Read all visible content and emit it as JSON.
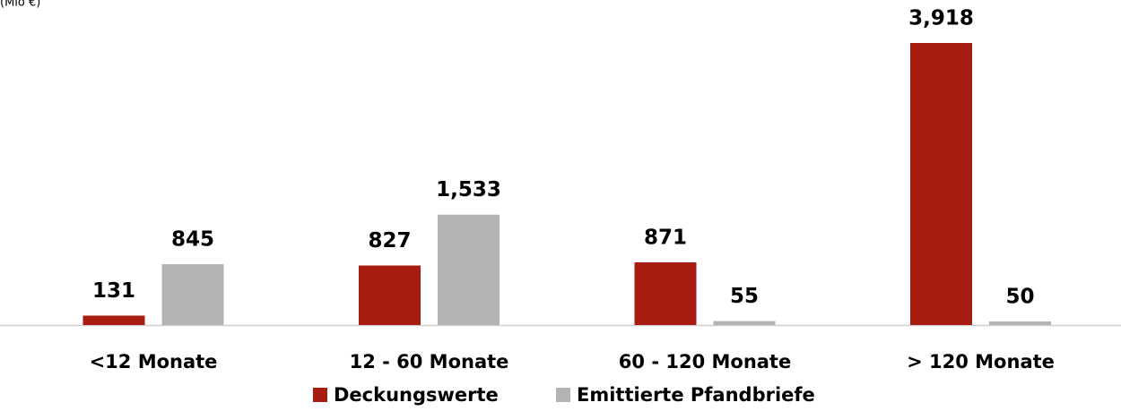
{
  "chart_data": {
    "type": "bar",
    "unit_label": "(Mio €)",
    "categories": [
      "<12 Monate",
      "12 - 60 Monate",
      "60 - 120 Monate",
      "> 120 Monate"
    ],
    "series": [
      {
        "name": "Deckungswerte",
        "color": "#a81c12",
        "values": [
          131,
          827,
          871,
          3918
        ],
        "value_labels": [
          "131",
          "827",
          "871",
          "3,918"
        ]
      },
      {
        "name": "Emittierte Pfandbriefe",
        "color": "#b3b3b3",
        "values": [
          845,
          1533,
          55,
          50
        ],
        "value_labels": [
          "845",
          "1,533",
          "55",
          "50"
        ]
      }
    ],
    "legend": "bottom"
  }
}
